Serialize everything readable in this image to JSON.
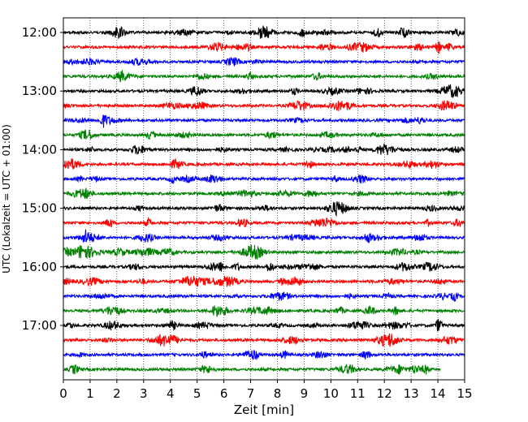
{
  "chart_data": {
    "type": "line",
    "title": "",
    "xlabel": "Zeit  [min]",
    "ylabel": "UTC (Lokalzeit = UTC + 01:00)",
    "xlim": [
      0,
      15
    ],
    "x_ticks": [
      "0",
      "1",
      "2",
      "3",
      "4",
      "5",
      "6",
      "7",
      "8",
      "9",
      "10",
      "11",
      "12",
      "13",
      "14",
      "15"
    ],
    "y_ticks": [
      "12:00",
      "13:00",
      "14:00",
      "15:00",
      "16:00",
      "17:00"
    ],
    "grid": "vertical dotted",
    "trace_interval_min": 15,
    "trace_colors": [
      "#000000",
      "#ff0000",
      "#0000ff",
      "#008000"
    ],
    "series": [
      {
        "start": "12:00",
        "color": "#000000"
      },
      {
        "start": "12:15",
        "color": "#ff0000"
      },
      {
        "start": "12:30",
        "color": "#0000ff"
      },
      {
        "start": "12:45",
        "color": "#008000"
      },
      {
        "start": "13:00",
        "color": "#000000"
      },
      {
        "start": "13:15",
        "color": "#ff0000"
      },
      {
        "start": "13:30",
        "color": "#0000ff"
      },
      {
        "start": "13:45",
        "color": "#008000"
      },
      {
        "start": "14:00",
        "color": "#000000"
      },
      {
        "start": "14:15",
        "color": "#ff0000"
      },
      {
        "start": "14:30",
        "color": "#0000ff"
      },
      {
        "start": "14:45",
        "color": "#008000"
      },
      {
        "start": "15:00",
        "color": "#000000"
      },
      {
        "start": "15:15",
        "color": "#ff0000"
      },
      {
        "start": "15:30",
        "color": "#0000ff"
      },
      {
        "start": "15:45",
        "color": "#008000"
      },
      {
        "start": "16:00",
        "color": "#000000"
      },
      {
        "start": "16:15",
        "color": "#ff0000"
      },
      {
        "start": "16:30",
        "color": "#0000ff"
      },
      {
        "start": "16:45",
        "color": "#008000"
      },
      {
        "start": "17:00",
        "color": "#000000"
      },
      {
        "start": "17:15",
        "color": "#ff0000"
      },
      {
        "start": "17:30",
        "color": "#0000ff"
      },
      {
        "start": "17:45",
        "color": "#008000",
        "end_min": 14.1
      }
    ]
  }
}
